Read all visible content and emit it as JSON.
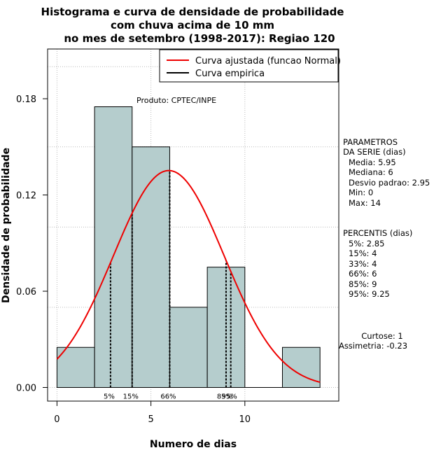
{
  "chart_data": {
    "type": "bar",
    "title_lines": [
      "Histograma e curva de densidade de probabilidade",
      "com chuva acima de 10 mm",
      "no mes de setembro (1998-2017): Regiao 120"
    ],
    "xlabel": "Numero de dias",
    "ylabel": "Densidade de probabilidade",
    "xlim": [
      -0.5,
      15.0
    ],
    "ylim": [
      -0.0085,
      0.211
    ],
    "x_ticks": [
      0,
      5,
      10
    ],
    "y_ticks": [
      0.0,
      0.06,
      0.12,
      0.18
    ],
    "y_tick_labels": [
      "0.00",
      "0.06",
      "0.12",
      "0.18"
    ],
    "bins": [
      {
        "x0": 0,
        "x1": 2,
        "density": 0.025
      },
      {
        "x0": 2,
        "x1": 4,
        "density": 0.175
      },
      {
        "x0": 4,
        "x1": 6,
        "density": 0.15
      },
      {
        "x0": 6,
        "x1": 8,
        "density": 0.05
      },
      {
        "x0": 8,
        "x1": 10,
        "density": 0.075
      },
      {
        "x0": 10,
        "x1": 12,
        "density": 0.0
      },
      {
        "x0": 12,
        "x1": 14,
        "density": 0.025
      }
    ],
    "normal_fit": {
      "mean": 5.95,
      "sd": 2.95,
      "x_range": [
        0,
        14
      ]
    },
    "percentile_lines": [
      {
        "label": "5%",
        "x": 2.85
      },
      {
        "label": "15%",
        "x": 4
      },
      {
        "label": "66%",
        "x": 6
      },
      {
        "label": "85%",
        "x": 9
      },
      {
        "label": "95%",
        "x": 9.25
      }
    ],
    "grid": true,
    "legend": {
      "placement": "top-right",
      "entries": [
        {
          "label": "Curva ajustada (funcao Normal)",
          "color": "#ee0000"
        },
        {
          "label": "Curva empirica",
          "color": "#000000"
        }
      ]
    },
    "annotation": "Produto: CPTEC/INPE",
    "parametros": {
      "header": [
        "PARAMETROS",
        "DA SERIE (dias)"
      ],
      "lines": [
        "Media: 5.95",
        "Mediana: 6",
        "Desvio padrao: 2.95",
        "Min: 0",
        "Max: 14"
      ]
    },
    "percentis": {
      "header": "PERCENTIS (dias)",
      "lines": [
        "5%: 2.85",
        "15%: 4",
        "33%: 4",
        "66%: 6",
        "85%: 9",
        "95%: 9.25"
      ]
    },
    "shape_stats": [
      "Curtose: 1",
      "Assimetria: -0.23"
    ],
    "colors": {
      "bar_fill": "#b5cdcd",
      "curve": "#ee0000",
      "grid": "#bbbbbb"
    }
  }
}
